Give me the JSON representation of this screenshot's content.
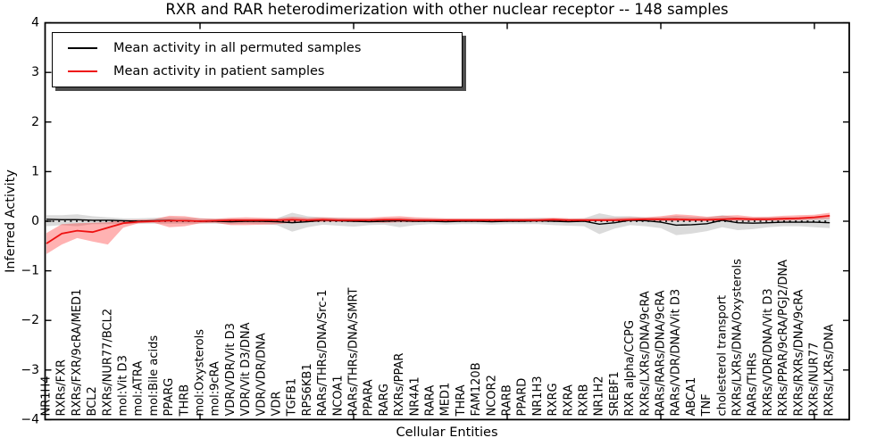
{
  "chart_data": {
    "type": "line",
    "title": "RXR and RAR heterodimerization with other nuclear receptor -- 148 samples",
    "xlabel": "Cellular Entities",
    "ylabel": "Inferred Activity",
    "ylim": [
      -4,
      4
    ],
    "yticks": [
      -4,
      -3,
      -2,
      -1,
      0,
      1,
      2,
      3,
      4
    ],
    "x_major_tick_step": 10,
    "grid": false,
    "zero_line": true,
    "legend_position": "upper left",
    "categories": [
      "NR1H4",
      "RXRs/FXR",
      "RXRs/FXR/9cRA/MED1",
      "BCL2",
      "RXRs/NUR77/BCL2",
      "mol:Vit D3",
      "mol:ATRA",
      "mol:Bile acids",
      "PPARG",
      "THRB",
      "mol:Oxysterols",
      "mol:9cRA",
      "VDR/VDR/Vit D3",
      "VDR/Vit D3/DNA",
      "VDR/VDR/DNA",
      "VDR",
      "TGFB1",
      "RPS6KB1",
      "RARs/THRs/DNA/Src-1",
      "NCOA1",
      "RARs/THRs/DNA/SMRT",
      "PPARA",
      "RARG",
      "RXRs/PPAR",
      "NR4A1",
      "RARA",
      "MED1",
      "THRA",
      "FAM120B",
      "NCOR2",
      "RARB",
      "PPARD",
      "NR1H3",
      "RXRG",
      "RXRA",
      "RXRB",
      "NR1H2",
      "SREBF1",
      "RXR alpha/CCPG",
      "RXRs/LXRs/DNA/9cRA",
      "RARs/RARs/DNA/9cRA",
      "RARs/VDR/DNA/Vit D3",
      "ABCA1",
      "TNF",
      "cholesterol transport",
      "RXRs/LXRs/DNA/Oxysterols",
      "RARs/THRs",
      "RXRs/VDR/DNA/Vit D3",
      "RXRs/PPAR/9cRA/PGJ2/DNA",
      "RXRs/RXRs/DNA/9cRA",
      "RXRs/NUR77",
      "RXRs/LXRs/DNA"
    ],
    "series": [
      {
        "name": "Mean activity in all permuted samples",
        "color": "#000000",
        "band_color": "rgba(110,110,110,0.25)",
        "values": [
          0.04,
          0.03,
          0.03,
          0.02,
          0.02,
          0.01,
          0.0,
          0.01,
          0.02,
          0.01,
          0.0,
          0.0,
          -0.01,
          0.0,
          0.0,
          -0.01,
          -0.03,
          -0.01,
          0.02,
          0.01,
          0.0,
          -0.01,
          0.0,
          0.01,
          0.0,
          0.0,
          -0.01,
          0.0,
          0.0,
          -0.01,
          0.0,
          0.0,
          0.01,
          0.0,
          -0.01,
          0.0,
          -0.06,
          -0.03,
          0.02,
          0.01,
          -0.02,
          -0.08,
          -0.07,
          -0.05,
          0.02,
          -0.03,
          -0.04,
          -0.03,
          -0.02,
          -0.02,
          -0.02,
          -0.03
        ],
        "band_lower": [
          -0.1,
          -0.08,
          -0.1,
          -0.06,
          -0.06,
          -0.05,
          -0.05,
          -0.05,
          -0.05,
          -0.05,
          -0.05,
          -0.05,
          -0.06,
          -0.05,
          -0.06,
          -0.08,
          -0.21,
          -0.12,
          -0.07,
          -0.09,
          -0.11,
          -0.08,
          -0.07,
          -0.12,
          -0.08,
          -0.06,
          -0.07,
          -0.06,
          -0.06,
          -0.07,
          -0.06,
          -0.06,
          -0.06,
          -0.08,
          -0.09,
          -0.1,
          -0.26,
          -0.15,
          -0.08,
          -0.1,
          -0.14,
          -0.28,
          -0.25,
          -0.2,
          -0.12,
          -0.18,
          -0.16,
          -0.12,
          -0.1,
          -0.1,
          -0.12,
          -0.14
        ],
        "band_upper": [
          0.12,
          0.12,
          0.14,
          0.1,
          0.08,
          0.06,
          0.06,
          0.07,
          0.08,
          0.07,
          0.06,
          0.05,
          0.05,
          0.05,
          0.05,
          0.06,
          0.17,
          0.1,
          0.08,
          0.07,
          0.06,
          0.06,
          0.06,
          0.07,
          0.06,
          0.05,
          0.05,
          0.05,
          0.05,
          0.05,
          0.06,
          0.06,
          0.07,
          0.06,
          0.05,
          0.06,
          0.16,
          0.1,
          0.1,
          0.08,
          0.08,
          0.11,
          0.09,
          0.08,
          0.12,
          0.08,
          0.07,
          0.08,
          0.08,
          0.08,
          0.07,
          0.08
        ]
      },
      {
        "name": "Mean activity in patient samples",
        "color": "#ee1111",
        "band_color": "rgba(255,0,0,0.30)",
        "values": [
          -0.45,
          -0.25,
          -0.19,
          -0.22,
          -0.13,
          -0.04,
          -0.01,
          0.0,
          0.01,
          0.01,
          0.0,
          0.01,
          0.02,
          0.02,
          0.02,
          0.02,
          0.03,
          0.02,
          0.03,
          0.02,
          0.02,
          0.02,
          0.03,
          0.03,
          0.02,
          0.02,
          0.02,
          0.02,
          0.02,
          0.02,
          0.02,
          0.02,
          0.02,
          0.03,
          0.02,
          0.02,
          0.02,
          0.02,
          0.03,
          0.04,
          0.04,
          0.04,
          0.03,
          0.03,
          0.04,
          0.05,
          0.04,
          0.04,
          0.05,
          0.06,
          0.08,
          0.11
        ],
        "band_lower": [
          -0.66,
          -0.47,
          -0.34,
          -0.41,
          -0.47,
          -0.13,
          -0.04,
          -0.03,
          -0.12,
          -0.1,
          -0.04,
          -0.03,
          -0.08,
          -0.08,
          -0.07,
          -0.06,
          -0.03,
          -0.02,
          -0.01,
          -0.01,
          -0.02,
          -0.02,
          -0.03,
          -0.02,
          -0.02,
          -0.01,
          -0.01,
          -0.01,
          -0.01,
          -0.01,
          -0.01,
          -0.01,
          -0.01,
          0.0,
          0.0,
          0.0,
          0.0,
          0.0,
          0.0,
          0.01,
          0.0,
          0.0,
          0.0,
          0.0,
          0.0,
          0.01,
          0.01,
          0.01,
          0.01,
          0.02,
          0.03,
          0.05
        ],
        "band_upper": [
          -0.24,
          -0.06,
          -0.04,
          -0.03,
          -0.02,
          0.02,
          0.03,
          0.04,
          0.11,
          0.1,
          0.06,
          0.05,
          0.07,
          0.08,
          0.07,
          0.06,
          0.09,
          0.07,
          0.08,
          0.07,
          0.07,
          0.07,
          0.09,
          0.1,
          0.08,
          0.07,
          0.06,
          0.06,
          0.06,
          0.06,
          0.06,
          0.06,
          0.06,
          0.07,
          0.06,
          0.06,
          0.06,
          0.07,
          0.08,
          0.08,
          0.1,
          0.14,
          0.12,
          0.09,
          0.11,
          0.12,
          0.09,
          0.09,
          0.11,
          0.12,
          0.13,
          0.17
        ]
      }
    ]
  }
}
